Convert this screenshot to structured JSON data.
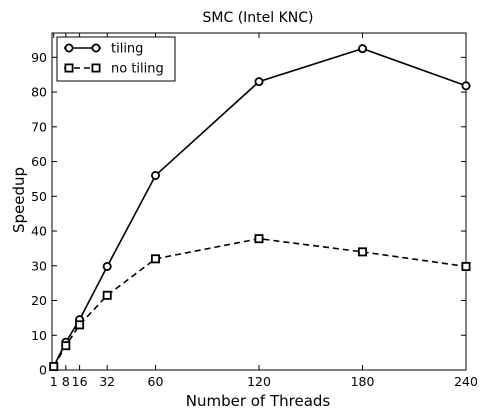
{
  "chart_data": {
    "type": "line",
    "title": "SMC (Intel KNC)",
    "xlabel": "Number of Threads",
    "ylabel": "Speedup",
    "x": [
      1,
      8,
      16,
      32,
      60,
      120,
      180,
      240
    ],
    "x_ticks": [
      1,
      8,
      16,
      32,
      60,
      120,
      180,
      240
    ],
    "x_tick_labels": [
      "1",
      "8",
      "16",
      "32",
      "60",
      "120",
      "180",
      "240"
    ],
    "xlim": [
      0,
      240
    ],
    "ylim": [
      0,
      97
    ],
    "y_ticks": [
      0,
      10,
      20,
      30,
      40,
      50,
      60,
      70,
      80,
      90
    ],
    "y_tick_labels": [
      "0",
      "10",
      "20",
      "30",
      "40",
      "50",
      "60",
      "70",
      "80",
      "90"
    ],
    "grid": false,
    "legend_position": "top-left",
    "series": [
      {
        "name": "tiling",
        "values": [
          1,
          8,
          14.5,
          29.8,
          56,
          83,
          92.5,
          81.8
        ],
        "line_style": "solid",
        "marker": "circle",
        "color": "#000000"
      },
      {
        "name": "no tiling",
        "values": [
          1,
          7,
          13,
          21.5,
          32,
          37.8,
          34,
          29.8
        ],
        "line_style": "dashed",
        "marker": "square",
        "color": "#000000"
      }
    ]
  }
}
